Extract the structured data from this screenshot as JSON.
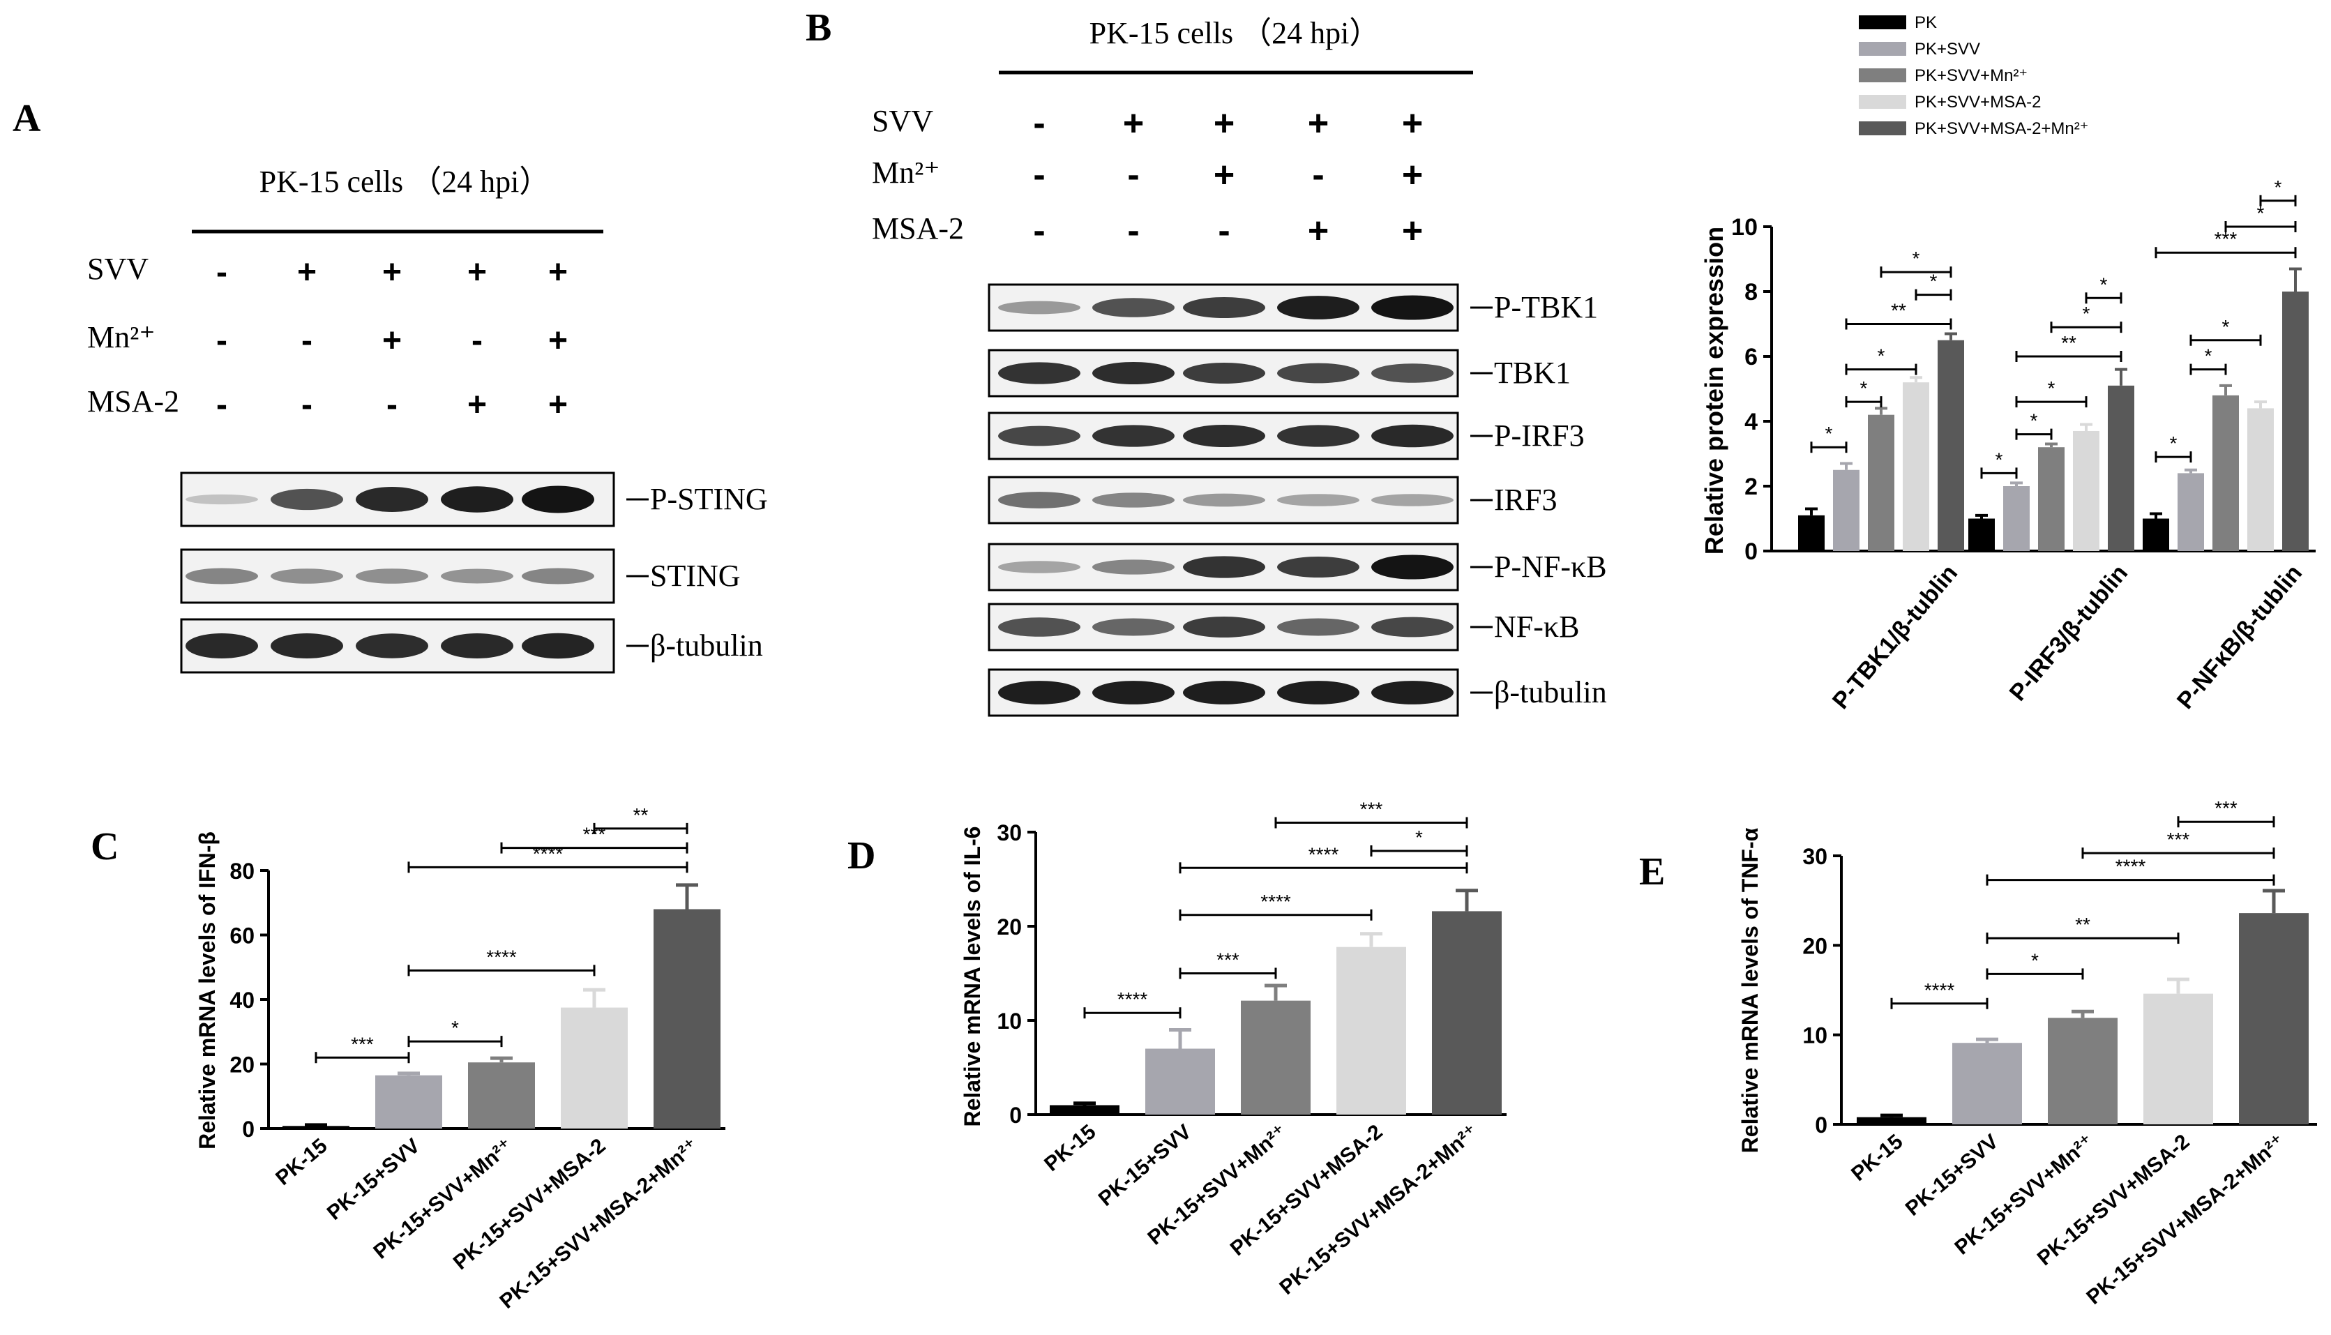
{
  "panel_letters": {
    "a": "A",
    "b": "B",
    "c": "C",
    "d": "D",
    "e": "E"
  },
  "blot_a": {
    "header": "PK-15 cells （24 hpi）",
    "rows": [
      {
        "label": "SVV",
        "signs": [
          "-",
          "+",
          "+",
          "+",
          "+"
        ]
      },
      {
        "label": "Mn²⁺",
        "signs": [
          "-",
          "-",
          "+",
          "-",
          "+"
        ]
      },
      {
        "label": "MSA-2",
        "signs": [
          "-",
          "-",
          "-",
          "+",
          "+"
        ]
      }
    ],
    "bands": [
      {
        "label": "P-STING",
        "intensity": [
          0.15,
          0.7,
          0.9,
          0.95,
          1.0
        ]
      },
      {
        "label": "STING",
        "intensity": [
          0.45,
          0.4,
          0.4,
          0.38,
          0.45
        ]
      },
      {
        "label": "β-tubulin",
        "intensity": [
          0.9,
          0.9,
          0.88,
          0.9,
          0.92
        ]
      }
    ]
  },
  "blot_b": {
    "header": "PK-15 cells （24 hpi）",
    "rows": [
      {
        "label": "SVV",
        "signs": [
          "-",
          "+",
          "+",
          "+",
          "+"
        ]
      },
      {
        "label": "Mn²⁺",
        "signs": [
          "-",
          "-",
          "+",
          "-",
          "+"
        ]
      },
      {
        "label": "MSA-2",
        "signs": [
          "-",
          "-",
          "-",
          "+",
          "+"
        ]
      }
    ],
    "bands": [
      {
        "label": "P-TBK1",
        "intensity": [
          0.35,
          0.7,
          0.8,
          0.95,
          1.0
        ]
      },
      {
        "label": "TBK1",
        "intensity": [
          0.85,
          0.88,
          0.8,
          0.75,
          0.7
        ]
      },
      {
        "label": "P-IRF3",
        "intensity": [
          0.75,
          0.85,
          0.88,
          0.85,
          0.9
        ]
      },
      {
        "label": "IRF3",
        "intensity": [
          0.55,
          0.45,
          0.35,
          0.3,
          0.3
        ]
      },
      {
        "label": "P-NF-κB",
        "intensity": [
          0.3,
          0.45,
          0.85,
          0.8,
          1.0
        ]
      },
      {
        "label": "NF-κB",
        "intensity": [
          0.7,
          0.6,
          0.8,
          0.6,
          0.75
        ]
      },
      {
        "label": "β-tubulin",
        "intensity": [
          0.95,
          0.95,
          0.95,
          0.95,
          0.95
        ]
      }
    ]
  },
  "chart_data": [
    {
      "type": "bar",
      "panel": "B",
      "ylabel": "Relative protein expression",
      "ylim": [
        0,
        10
      ],
      "yticks": [
        0,
        2,
        4,
        6,
        8,
        10
      ],
      "categories": [
        "P-TBK1/β-tublin",
        "P-IRF3/β-tublin",
        "P-NFκB/β-tublin"
      ],
      "legend_position": "top",
      "series": [
        {
          "name": "PK",
          "color": "#000000",
          "values": [
            1.1,
            1.0,
            1.0
          ],
          "errors": [
            0.2,
            0.1,
            0.15
          ]
        },
        {
          "name": "PK+SVV",
          "color": "#a6a6ae",
          "values": [
            2.5,
            2.0,
            2.4
          ],
          "errors": [
            0.2,
            0.1,
            0.1
          ]
        },
        {
          "name": "PK+SVV+Mn²⁺",
          "color": "#7f7f7f",
          "values": [
            4.2,
            3.2,
            4.8
          ],
          "errors": [
            0.2,
            0.1,
            0.3
          ]
        },
        {
          "name": "PK+SVV+MSA-2",
          "color": "#d9d9d9",
          "values": [
            5.2,
            3.7,
            4.4
          ],
          "errors": [
            0.15,
            0.2,
            0.2
          ]
        },
        {
          "name": "PK+SVV+MSA-2+Mn²⁺",
          "color": "#595959",
          "values": [
            6.5,
            5.1,
            8.0
          ],
          "errors": [
            0.2,
            0.5,
            0.7
          ]
        }
      ],
      "significance": [
        {
          "group": 0,
          "from": 0,
          "to": 1,
          "label": "*",
          "y": 3.2
        },
        {
          "group": 0,
          "from": 1,
          "to": 2,
          "label": "*",
          "y": 4.6
        },
        {
          "group": 0,
          "from": 1,
          "to": 3,
          "label": "*",
          "y": 5.6
        },
        {
          "group": 0,
          "from": 1,
          "to": 4,
          "label": "**",
          "y": 7.0
        },
        {
          "group": 0,
          "from": 3,
          "to": 4,
          "label": "*",
          "y": 7.9
        },
        {
          "group": 0,
          "from": 2,
          "to": 4,
          "label": "*",
          "y": 8.6
        },
        {
          "group": 1,
          "from": 0,
          "to": 1,
          "label": "*",
          "y": 2.4
        },
        {
          "group": 1,
          "from": 1,
          "to": 2,
          "label": "*",
          "y": 3.6
        },
        {
          "group": 1,
          "from": 1,
          "to": 3,
          "label": "*",
          "y": 4.6
        },
        {
          "group": 1,
          "from": 1,
          "to": 4,
          "label": "**",
          "y": 6.0
        },
        {
          "group": 1,
          "from": 2,
          "to": 4,
          "label": "*",
          "y": 6.9
        },
        {
          "group": 1,
          "from": 3,
          "to": 4,
          "label": "*",
          "y": 7.8
        },
        {
          "group": 2,
          "from": 0,
          "to": 1,
          "label": "*",
          "y": 2.9
        },
        {
          "group": 2,
          "from": 1,
          "to": 2,
          "label": "*",
          "y": 5.6
        },
        {
          "group": 2,
          "from": 1,
          "to": 3,
          "label": "*",
          "y": 6.5
        },
        {
          "group": 2,
          "from": 0,
          "to": 4,
          "label": "***",
          "y": 9.2
        },
        {
          "group": 2,
          "from": 2,
          "to": 4,
          "label": "*",
          "y": 10.0
        },
        {
          "group": 2,
          "from": 3,
          "to": 4,
          "label": "*",
          "y": 10.8
        }
      ]
    },
    {
      "type": "bar",
      "panel": "C",
      "ylabel": "Relative mRNA levels of IFN-β",
      "ylim": [
        0,
        80
      ],
      "yticks": [
        0,
        20,
        40,
        60,
        80
      ],
      "categories": [
        "PK-15",
        "PK-15+SVV",
        "PK-15+SVV+Mn²⁺",
        "PK-15+SVV+MSA-2",
        "PK-15+SVV+MSA-2+Mn²⁺"
      ],
      "colors": [
        "#000000",
        "#a6a6ae",
        "#7f7f7f",
        "#d9d9d9",
        "#595959"
      ],
      "values": [
        0.8,
        16.5,
        20.5,
        37.5,
        68.0
      ],
      "errors": [
        0.3,
        0.6,
        1.3,
        5.5,
        7.5
      ],
      "significance": [
        {
          "from": 0,
          "to": 1,
          "label": "***",
          "y": 22
        },
        {
          "from": 1,
          "to": 2,
          "label": "*",
          "y": 27
        },
        {
          "from": 1,
          "to": 3,
          "label": "****",
          "y": 49
        },
        {
          "from": 1,
          "to": 4,
          "label": "****",
          "y": 81
        },
        {
          "from": 2,
          "to": 4,
          "label": "***",
          "y": 87
        },
        {
          "from": 3,
          "to": 4,
          "label": "**",
          "y": 93
        }
      ]
    },
    {
      "type": "bar",
      "panel": "D",
      "ylabel": "Relative mRNA levels of IL-6",
      "ylim": [
        0,
        30
      ],
      "yticks": [
        0,
        10,
        20,
        30
      ],
      "categories": [
        "PK-15",
        "PK-15+SVV",
        "PK-15+SVV+Mn²⁺",
        "PK-15+SVV+MSA-2",
        "PK-15+SVV+MSA-2+Mn²⁺"
      ],
      "colors": [
        "#000000",
        "#a6a6ae",
        "#7f7f7f",
        "#d9d9d9",
        "#595959"
      ],
      "values": [
        1.0,
        7.0,
        12.1,
        17.8,
        21.6
      ],
      "errors": [
        0.2,
        2.0,
        1.6,
        1.4,
        2.2
      ],
      "significance": [
        {
          "from": 0,
          "to": 1,
          "label": "****",
          "y": 10.8
        },
        {
          "from": 1,
          "to": 2,
          "label": "***",
          "y": 15.0
        },
        {
          "from": 1,
          "to": 3,
          "label": "****",
          "y": 21.2
        },
        {
          "from": 1,
          "to": 4,
          "label": "****",
          "y": 26.2
        },
        {
          "from": 3,
          "to": 4,
          "label": "*",
          "y": 28.0
        },
        {
          "from": 2,
          "to": 4,
          "label": "***",
          "y": 31.0
        }
      ]
    },
    {
      "type": "bar",
      "panel": "E",
      "ylabel": "Relative mRNA levels of TNF-α",
      "ylim": [
        0,
        30
      ],
      "yticks": [
        0,
        10,
        20,
        30
      ],
      "categories": [
        "PK-15",
        "PK-15+SVV",
        "PK-15+SVV+Mn²⁺",
        "PK-15+SVV+MSA-2",
        "PK-15+SVV+MSA-2+Mn²⁺"
      ],
      "colors": [
        "#000000",
        "#a6a6ae",
        "#7f7f7f",
        "#d9d9d9",
        "#595959"
      ],
      "values": [
        0.8,
        9.1,
        11.9,
        14.6,
        23.6
      ],
      "errors": [
        0.2,
        0.4,
        0.7,
        1.6,
        2.5
      ],
      "significance": [
        {
          "from": 0,
          "to": 1,
          "label": "****",
          "y": 13.5
        },
        {
          "from": 1,
          "to": 2,
          "label": "*",
          "y": 16.8
        },
        {
          "from": 1,
          "to": 3,
          "label": "**",
          "y": 20.8
        },
        {
          "from": 1,
          "to": 4,
          "label": "****",
          "y": 27.3
        },
        {
          "from": 2,
          "to": 4,
          "label": "***",
          "y": 30.3
        },
        {
          "from": 3,
          "to": 4,
          "label": "***",
          "y": 33.8
        }
      ]
    }
  ]
}
